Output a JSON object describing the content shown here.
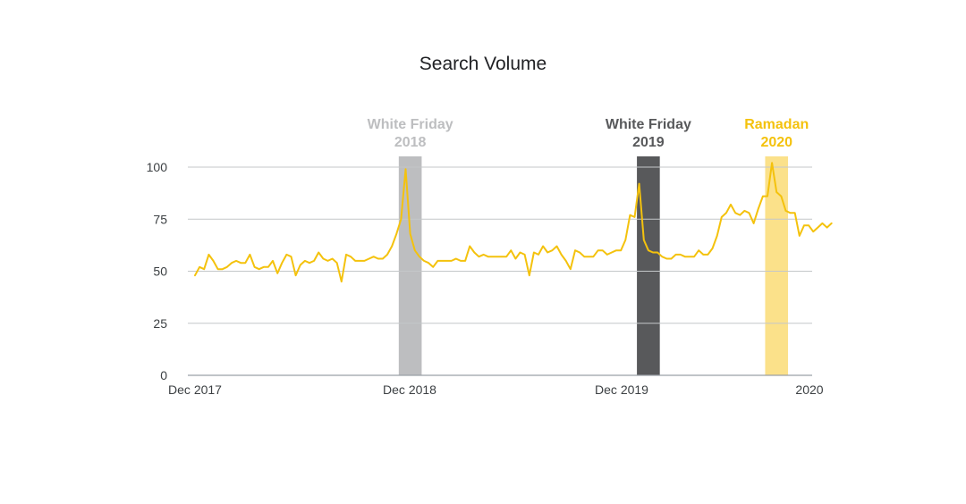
{
  "chart_data": {
    "type": "line",
    "title": "Search Volume",
    "xlabel": "",
    "ylabel": "",
    "ylim": [
      0,
      100
    ],
    "yticks": [
      0,
      25,
      50,
      75,
      100
    ],
    "x_tick_labels": [
      "Dec 2017",
      "Dec 2018",
      "Dec 2019",
      "2020"
    ],
    "x_tick_weeks": [
      0,
      52,
      104,
      136
    ],
    "x_range_weeks": [
      0,
      136
    ],
    "grid": true,
    "x_unit": "weeks since Dec 2017",
    "series": [
      {
        "name": "",
        "color": "#F4C20D",
        "values": [
          48,
          52,
          51,
          58,
          55,
          51,
          51,
          52,
          54,
          55,
          54,
          54,
          58,
          52,
          51,
          52,
          52,
          55,
          49,
          54,
          58,
          57,
          48,
          53,
          55,
          54,
          55,
          59,
          56,
          55,
          56,
          54,
          45,
          58,
          57,
          55,
          55,
          55,
          56,
          57,
          56,
          56,
          58,
          62,
          68,
          75,
          99,
          68,
          60,
          57,
          55,
          54,
          52,
          55,
          55,
          55,
          55,
          56,
          55,
          55,
          62,
          59,
          57,
          58,
          57,
          57,
          57,
          57,
          57,
          60,
          56,
          59,
          58,
          48,
          59,
          58,
          62,
          59,
          60,
          62,
          58,
          55,
          51,
          60,
          59,
          57,
          57,
          57,
          60,
          60,
          58,
          59,
          60,
          60,
          65,
          77,
          76,
          92,
          65,
          60,
          59,
          59,
          57,
          56,
          56,
          58,
          58,
          57,
          57,
          57,
          60,
          58,
          58,
          61,
          67,
          76,
          78,
          82,
          78,
          77,
          79,
          78,
          73,
          80,
          86,
          86,
          102,
          88,
          86,
          79,
          78,
          78,
          67,
          72,
          72,
          69,
          71,
          73,
          71,
          73
        ]
      }
    ],
    "bands": [
      {
        "label_line1": "White Friday",
        "label_line2": "2018",
        "x_start": 44.5,
        "x_end": 49.5,
        "color": "#BDBEC0",
        "label_color": "#BDBEC0"
      },
      {
        "label_line1": "White Friday",
        "label_line2": "2019",
        "x_start": 96.5,
        "x_end": 101.5,
        "color": "#58595B",
        "label_color": "#58595B"
      },
      {
        "label_line1": "Ramadan",
        "label_line2": "2020",
        "x_start": 124.5,
        "x_end": 129.5,
        "color": "#FBE18A",
        "label_color": "#F4C20D"
      }
    ]
  }
}
